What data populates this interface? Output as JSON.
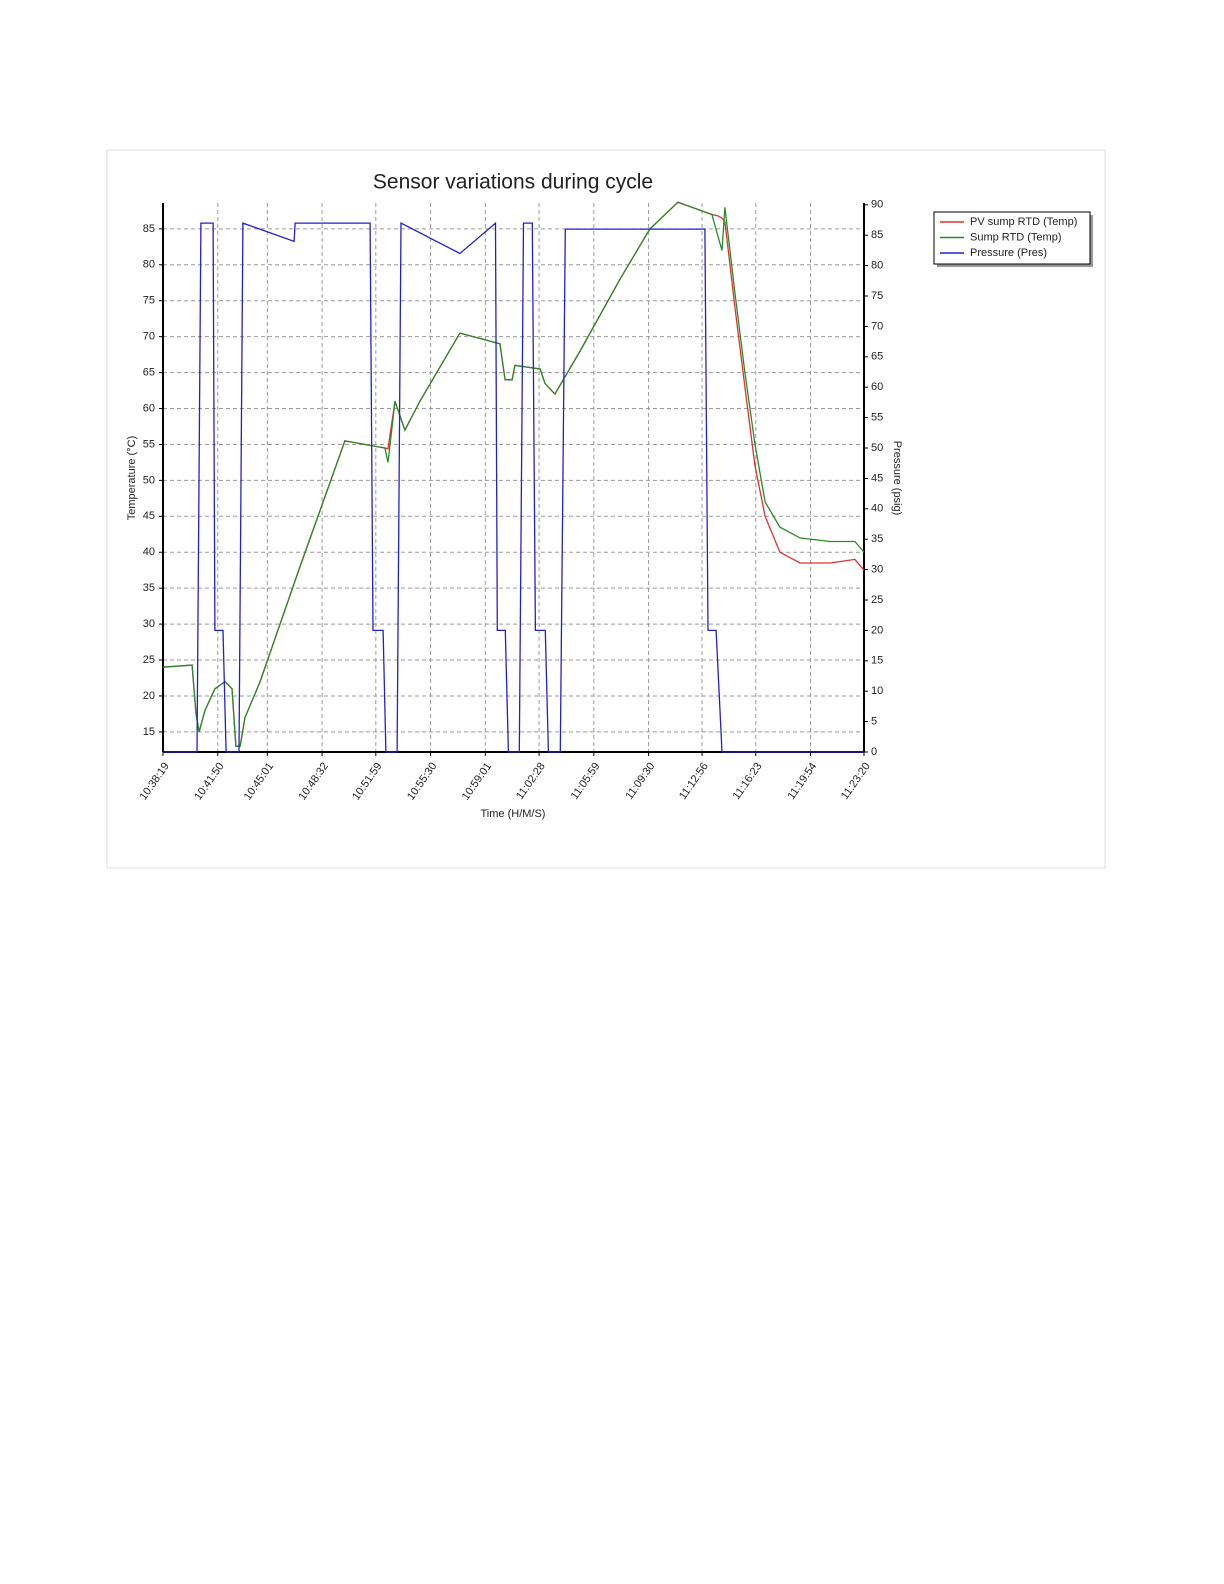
{
  "chart_data": {
    "type": "line",
    "title": "Sensor variations during cycle",
    "x_label": "Time (H/M/S)",
    "y_label": "Temperature (°C)",
    "y2_label": "Pressure (psig)",
    "xlim": [
      "10:38:19",
      "11:23:20"
    ],
    "xticks": [
      "10:38:19",
      "10:41:50",
      "10:45:01",
      "10:48:32",
      "10:51:59",
      "10:55:30",
      "10:59:01",
      "11:02:28",
      "11:05:59",
      "11:09:30",
      "11:12:56",
      "11:16:23",
      "11:19:54",
      "11:23:20"
    ],
    "ylim": [
      12.2,
      88.6
    ],
    "yticks": [
      15,
      20,
      25,
      30,
      35,
      40,
      45,
      50,
      55,
      60,
      65,
      70,
      75,
      80,
      85
    ],
    "y2lim": [
      0,
      90.3
    ],
    "y2ticks": [
      0,
      5,
      10,
      15,
      20,
      25,
      30,
      35,
      40,
      45,
      50,
      55,
      60,
      65,
      70,
      75,
      80,
      85,
      90
    ],
    "grid": true,
    "legend": "outside right",
    "series": [
      {
        "name": "PV sump RTD (Temp)",
        "color": "#e03030",
        "x": [
          "10:38:19",
          "10:40:11",
          "10:40:26",
          "10:40:38",
          "10:41:01",
          "10:41:39",
          "10:42:18",
          "10:42:45",
          "10:43:00",
          "10:43:16",
          "10:43:35",
          "10:44:33",
          "10:47:07",
          "10:50:00",
          "10:52:34",
          "10:52:46",
          "10:53:13",
          "10:53:51",
          "10:54:49",
          "10:57:23",
          "10:59:57",
          "11:00:17",
          "11:00:44",
          "11:00:55",
          "11:02:32",
          "11:02:51",
          "11:03:29",
          "11:05:06",
          "11:07:40",
          "11:09:35",
          "11:11:23",
          "11:13:34",
          "11:13:57",
          "11:14:13",
          "11:14:24",
          "11:15:03",
          "11:15:41",
          "11:16:20",
          "11:16:59",
          "11:17:56",
          "11:19:13",
          "11:21:09",
          "11:22:45",
          "11:23:20"
        ],
        "values": [
          24,
          24.3,
          17.5,
          15,
          18,
          21,
          22,
          21,
          13,
          13,
          17,
          22,
          38,
          55.5,
          54.5,
          54.4,
          61,
          57,
          61,
          70.5,
          69,
          64,
          64,
          66,
          65.5,
          63.5,
          62,
          68,
          78,
          85,
          88.7,
          87,
          86.8,
          86.5,
          86,
          74,
          63,
          52,
          45,
          40,
          38.5,
          38.5,
          39,
          37.5
        ]
      },
      {
        "name": "Sump RTD (Temp)",
        "color": "#2a8a2a",
        "x": [
          "10:38:19",
          "10:40:11",
          "10:40:26",
          "10:40:38",
          "10:41:01",
          "10:41:39",
          "10:42:18",
          "10:42:45",
          "10:43:00",
          "10:43:16",
          "10:43:35",
          "10:44:33",
          "10:47:07",
          "10:50:00",
          "10:52:34",
          "10:52:46",
          "10:53:13",
          "10:53:51",
          "10:54:49",
          "10:57:23",
          "10:59:57",
          "11:00:17",
          "11:00:44",
          "11:00:55",
          "11:02:32",
          "11:02:51",
          "11:03:29",
          "11:05:06",
          "11:07:40",
          "11:09:35",
          "11:11:23",
          "11:13:34",
          "11:13:57",
          "11:14:13",
          "11:14:24",
          "11:15:03",
          "11:15:41",
          "11:16:20",
          "11:16:59",
          "11:17:56",
          "11:19:13",
          "11:21:09",
          "11:22:45",
          "11:23:20"
        ],
        "values": [
          24,
          24.3,
          17.5,
          15,
          18,
          21,
          22,
          21,
          13,
          13,
          17,
          22,
          38,
          55.5,
          54.5,
          52.5,
          61,
          57,
          61,
          70.5,
          69,
          64,
          64,
          66,
          65.5,
          63.5,
          62,
          68,
          78,
          85,
          88.7,
          87,
          84,
          82,
          88,
          76,
          65,
          55,
          47,
          43.5,
          42,
          41.5,
          41.5,
          40
        ]
      },
      {
        "name": "Pressure (Pres)",
        "color": "#2020d0",
        "axis": "y2",
        "x": [
          "10:38:19",
          "10:40:30",
          "10:40:45",
          "10:41:32",
          "10:41:39",
          "10:42:10",
          "10:42:22",
          "10:43:12",
          "10:43:27",
          "10:46:44",
          "10:46:48",
          "10:51:37",
          "10:51:48",
          "10:52:27",
          "10:52:38",
          "10:53:21",
          "10:53:36",
          "10:57:23",
          "10:59:40",
          "10:59:47",
          "11:00:18",
          "11:00:30",
          "11:01:12",
          "11:01:28",
          "11:02:02",
          "11:02:14",
          "11:02:52",
          "11:03:04",
          "11:03:50",
          "11:04:09",
          "11:13:07",
          "11:13:19",
          "11:13:50",
          "11:14:13",
          "11:23:20"
        ],
        "values": [
          0,
          0,
          87,
          87,
          20,
          20,
          0,
          0,
          87,
          84,
          87,
          87,
          20,
          20,
          0,
          0,
          87,
          82,
          87,
          20,
          20,
          0,
          0,
          87,
          87,
          20,
          20,
          0,
          0,
          86,
          86,
          20,
          20,
          0,
          0
        ]
      }
    ]
  }
}
